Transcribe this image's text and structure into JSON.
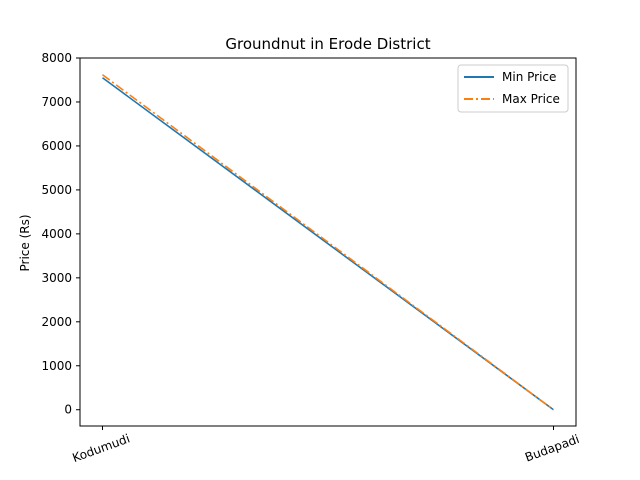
{
  "chart_data": {
    "type": "line",
    "title": "Groundnut in Erode District",
    "xlabel": "",
    "ylabel": "Price (Rs)",
    "categories": [
      "Kodumudi",
      "Budapadi"
    ],
    "ylim": [
      -370,
      8000
    ],
    "yticks": [
      0,
      1000,
      2000,
      3000,
      4000,
      5000,
      6000,
      7000,
      8000
    ],
    "grid": false,
    "legend_position": "top-right",
    "series": [
      {
        "name": "Min Price",
        "values": [
          7550,
          0
        ],
        "color": "#1f77b4",
        "style": "solid"
      },
      {
        "name": "Max Price",
        "values": [
          7620,
          0
        ],
        "color": "#ff7f0e",
        "style": "dashdot"
      }
    ]
  }
}
